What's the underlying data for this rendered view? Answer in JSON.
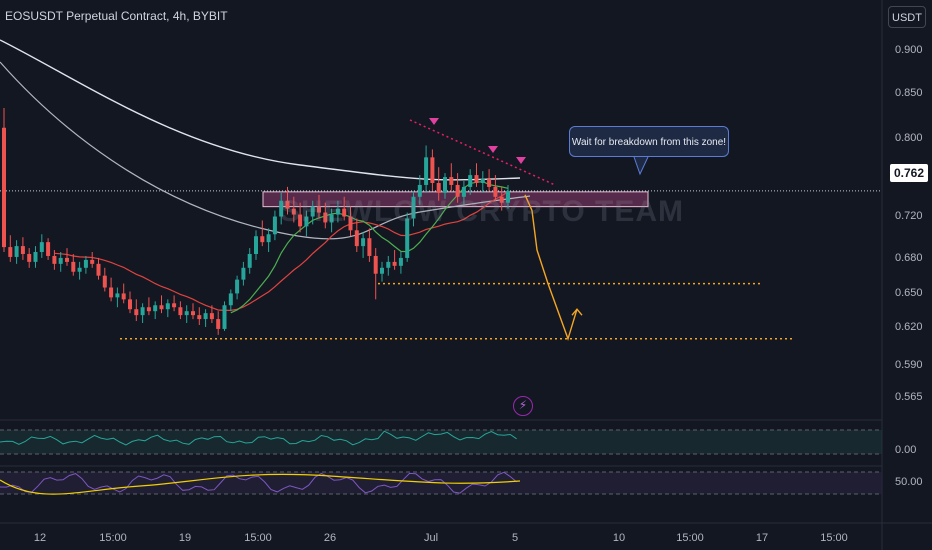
{
  "header": {
    "title": "EOSUSDT Perpetual Contract, 4h, BYBIT",
    "currency_button": "USDT"
  },
  "price_axis": {
    "ticks": [
      "0.900",
      "0.850",
      "0.800",
      "0.720",
      "0.680",
      "0.650",
      "0.620",
      "0.590",
      "0.565"
    ],
    "current_price": "0.762"
  },
  "time_axis": {
    "ticks": [
      "12",
      "15:00",
      "19",
      "15:00",
      "26",
      "Jul",
      "5",
      "10",
      "15:00",
      "17",
      "15:00"
    ]
  },
  "annotation": {
    "callout": "Wait for breakdown from this zone!",
    "watermark": "SHEWLOW CRYPTO TEAM"
  },
  "oscillator1": {
    "label": "0.00"
  },
  "oscillator2": {
    "label": "50.00"
  },
  "colors": {
    "background": "#131722",
    "bull": "#26a69a",
    "bear": "#ef5350",
    "zone": "#8e3a6b",
    "dotted": "#f5a623",
    "ma_white": "#e0e3eb",
    "ma_red": "#e0433f",
    "ma_green": "#4caf50",
    "trendline": "#e91e63"
  },
  "chart_data": {
    "type": "candlestick",
    "title": "EOSUSDT Perpetual Contract, 4h, BYBIT",
    "timeframe": "4h",
    "y_range": [
      0.555,
      0.915
    ],
    "last_price": 0.762,
    "resistance_zone": [
      0.746,
      0.761
    ],
    "support_levels": [
      0.668,
      0.612
    ],
    "projection": [
      0.758,
      0.742,
      0.702,
      0.668,
      0.612,
      0.642
    ],
    "candles": [
      [
        0.826,
        0.846,
        0.7,
        0.705
      ],
      [
        0.705,
        0.717,
        0.69,
        0.695
      ],
      [
        0.695,
        0.712,
        0.688,
        0.706
      ],
      [
        0.706,
        0.715,
        0.692,
        0.698
      ],
      [
        0.698,
        0.704,
        0.684,
        0.69
      ],
      [
        0.69,
        0.706,
        0.684,
        0.7
      ],
      [
        0.7,
        0.718,
        0.694,
        0.71
      ],
      [
        0.71,
        0.714,
        0.692,
        0.696
      ],
      [
        0.696,
        0.702,
        0.682,
        0.688
      ],
      [
        0.688,
        0.7,
        0.68,
        0.694
      ],
      [
        0.694,
        0.704,
        0.686,
        0.69
      ],
      [
        0.69,
        0.698,
        0.676,
        0.68
      ],
      [
        0.68,
        0.69,
        0.672,
        0.684
      ],
      [
        0.684,
        0.696,
        0.678,
        0.692
      ],
      [
        0.692,
        0.7,
        0.684,
        0.688
      ],
      [
        0.688,
        0.694,
        0.672,
        0.676
      ],
      [
        0.676,
        0.684,
        0.66,
        0.664
      ],
      [
        0.664,
        0.674,
        0.65,
        0.654
      ],
      [
        0.654,
        0.664,
        0.644,
        0.658
      ],
      [
        0.658,
        0.668,
        0.648,
        0.652
      ],
      [
        0.652,
        0.66,
        0.638,
        0.642
      ],
      [
        0.642,
        0.652,
        0.63,
        0.636
      ],
      [
        0.636,
        0.648,
        0.628,
        0.644
      ],
      [
        0.644,
        0.654,
        0.636,
        0.64
      ],
      [
        0.64,
        0.65,
        0.632,
        0.646
      ],
      [
        0.646,
        0.656,
        0.638,
        0.642
      ],
      [
        0.642,
        0.652,
        0.634,
        0.648
      ],
      [
        0.648,
        0.656,
        0.64,
        0.644
      ],
      [
        0.644,
        0.65,
        0.632,
        0.636
      ],
      [
        0.636,
        0.646,
        0.628,
        0.64
      ],
      [
        0.64,
        0.648,
        0.632,
        0.636
      ],
      [
        0.636,
        0.644,
        0.626,
        0.632
      ],
      [
        0.632,
        0.642,
        0.624,
        0.638
      ],
      [
        0.638,
        0.646,
        0.628,
        0.632
      ],
      [
        0.632,
        0.64,
        0.616,
        0.622
      ],
      [
        0.622,
        0.65,
        0.62,
        0.646
      ],
      [
        0.646,
        0.662,
        0.64,
        0.658
      ],
      [
        0.658,
        0.676,
        0.652,
        0.672
      ],
      [
        0.672,
        0.69,
        0.666,
        0.684
      ],
      [
        0.684,
        0.704,
        0.678,
        0.698
      ],
      [
        0.698,
        0.722,
        0.692,
        0.716
      ],
      [
        0.716,
        0.732,
        0.706,
        0.71
      ],
      [
        0.71,
        0.724,
        0.7,
        0.718
      ],
      [
        0.718,
        0.742,
        0.712,
        0.736
      ],
      [
        0.736,
        0.76,
        0.728,
        0.752
      ],
      [
        0.752,
        0.766,
        0.738,
        0.744
      ],
      [
        0.744,
        0.756,
        0.73,
        0.738
      ],
      [
        0.738,
        0.75,
        0.72,
        0.726
      ],
      [
        0.726,
        0.742,
        0.716,
        0.736
      ],
      [
        0.736,
        0.752,
        0.728,
        0.746
      ],
      [
        0.746,
        0.758,
        0.734,
        0.74
      ],
      [
        0.74,
        0.75,
        0.724,
        0.73
      ],
      [
        0.73,
        0.744,
        0.72,
        0.738
      ],
      [
        0.738,
        0.752,
        0.73,
        0.744
      ],
      [
        0.744,
        0.756,
        0.732,
        0.736
      ],
      [
        0.736,
        0.746,
        0.716,
        0.722
      ],
      [
        0.722,
        0.734,
        0.7,
        0.706
      ],
      [
        0.706,
        0.72,
        0.694,
        0.714
      ],
      [
        0.714,
        0.724,
        0.69,
        0.696
      ],
      [
        0.696,
        0.704,
        0.652,
        0.678
      ],
      [
        0.678,
        0.69,
        0.67,
        0.684
      ],
      [
        0.684,
        0.696,
        0.676,
        0.69
      ],
      [
        0.69,
        0.702,
        0.682,
        0.686
      ],
      [
        0.686,
        0.7,
        0.678,
        0.694
      ],
      [
        0.694,
        0.74,
        0.69,
        0.734
      ],
      [
        0.734,
        0.762,
        0.726,
        0.756
      ],
      [
        0.756,
        0.778,
        0.748,
        0.768
      ],
      [
        0.768,
        0.808,
        0.76,
        0.796
      ],
      [
        0.796,
        0.804,
        0.762,
        0.77
      ],
      [
        0.77,
        0.786,
        0.752,
        0.76
      ],
      [
        0.76,
        0.78,
        0.754,
        0.776
      ],
      [
        0.776,
        0.79,
        0.762,
        0.768
      ],
      [
        0.768,
        0.78,
        0.75,
        0.756
      ],
      [
        0.756,
        0.772,
        0.748,
        0.766
      ],
      [
        0.766,
        0.784,
        0.758,
        0.778
      ],
      [
        0.778,
        0.79,
        0.766,
        0.77
      ],
      [
        0.77,
        0.782,
        0.76,
        0.774
      ],
      [
        0.774,
        0.784,
        0.762,
        0.766
      ],
      [
        0.766,
        0.778,
        0.752,
        0.756
      ],
      [
        0.756,
        0.766,
        0.742,
        0.75
      ],
      [
        0.75,
        0.768,
        0.744,
        0.762
      ]
    ]
  }
}
